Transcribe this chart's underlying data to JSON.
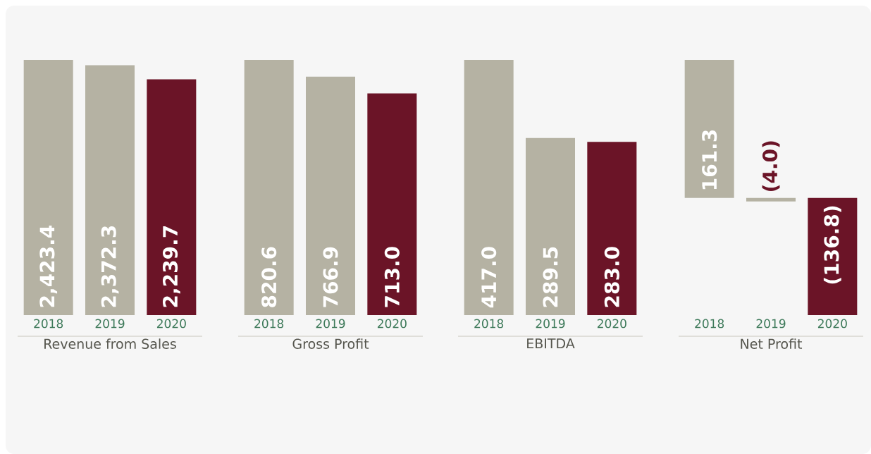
{
  "chart_data": [
    {
      "type": "bar",
      "xlabel": "Revenue from Sales",
      "categories": [
        "2018",
        "2019",
        "2020"
      ],
      "values": [
        2423.4,
        2372.3,
        2239.7
      ],
      "colors": [
        "#b5b2a3",
        "#b5b2a3",
        "#6b1427"
      ],
      "value_labels": [
        "2,423.4",
        "2,372.3",
        "2,239.7"
      ]
    },
    {
      "type": "bar",
      "xlabel": "Gross Profit",
      "categories": [
        "2018",
        "2019",
        "2020"
      ],
      "values": [
        820.6,
        766.9,
        713.0
      ],
      "colors": [
        "#b5b2a3",
        "#b5b2a3",
        "#6b1427"
      ],
      "value_labels": [
        "820.6",
        "766.9",
        "713.0"
      ]
    },
    {
      "type": "bar",
      "xlabel": "EBITDA",
      "categories": [
        "2018",
        "2019",
        "2020"
      ],
      "values": [
        417.0,
        289.5,
        283.0
      ],
      "colors": [
        "#b5b2a3",
        "#b5b2a3",
        "#6b1427"
      ],
      "value_labels": [
        "417.0",
        "289.5",
        "283.0"
      ]
    },
    {
      "type": "bar",
      "xlabel": "Net Profit",
      "categories": [
        "2018",
        "2019",
        "2020"
      ],
      "values": [
        161.3,
        -4.0,
        -136.8
      ],
      "colors": [
        "#b5b2a3",
        "#b5b2a3",
        "#6b1427"
      ],
      "value_labels": [
        "161.3",
        "(4.0)",
        "(136.8)"
      ]
    }
  ]
}
